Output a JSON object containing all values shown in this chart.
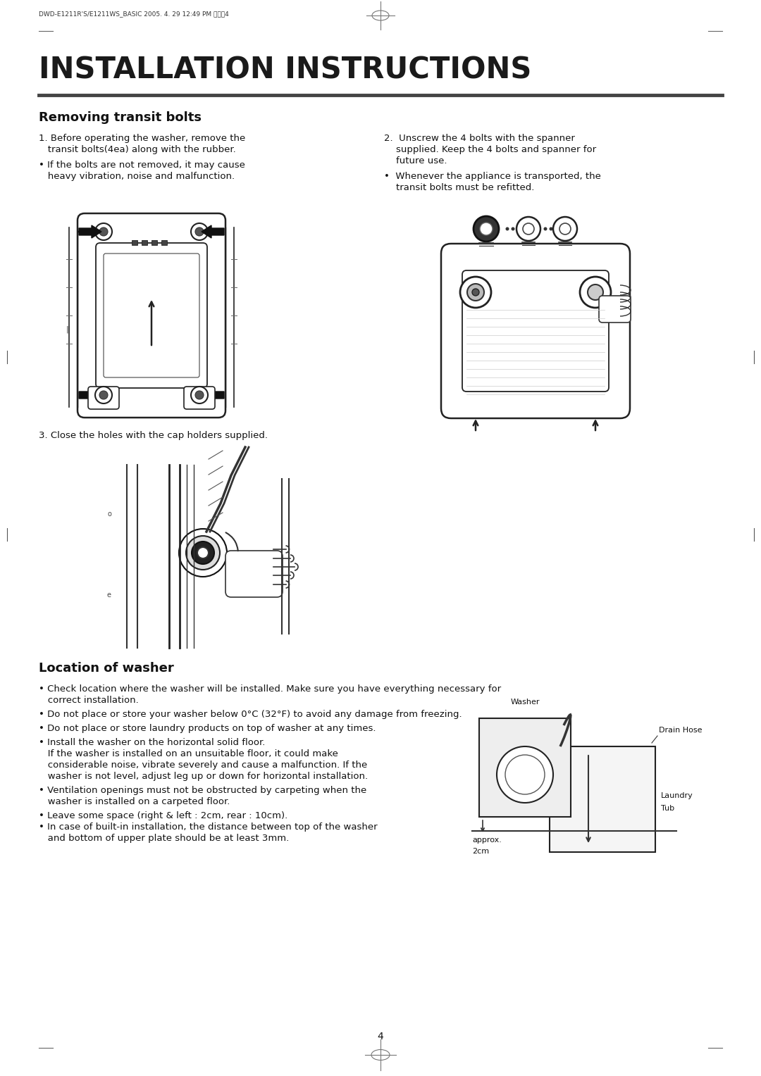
{
  "page_bg": "#ffffff",
  "header_text": "DWD-E1211R'S/E1211WS_BASIC 2005. 4. 29 12:49 PM 페이지4",
  "header_fontsize": 6.5,
  "main_title": "INSTALLATION INSTRUCTIONS",
  "main_title_fontsize": 30,
  "main_title_color": "#1a1a1a",
  "title_underline_color": "#444444",
  "section1_title": "Removing transit bolts",
  "section1_title_fontsize": 13,
  "section2_title": "Location of washer",
  "section2_title_fontsize": 13,
  "col1_line1": "1. Before operating the washer, remove the",
  "col1_line2": "   transit bolts(4ea) along with the rubber.",
  "col1_line3": "• If the bolts are not removed, it may cause",
  "col1_line4": "   heavy vibration, noise and malfunction.",
  "col2_line1": "2.  Unscrew the 4 bolts with the spanner",
  "col2_line2": "    supplied. Keep the 4 bolts and spanner for",
  "col2_line3": "    future use.",
  "col2_line4": "•  Whenever the appliance is transported, the",
  "col2_line5": "    transit bolts must be refitted.",
  "step3_text": "3. Close the holes with the cap holders supplied.",
  "loc_b1a": "• Check location where the washer will be installed. Make sure you have everything necessary for",
  "loc_b1b": "   correct installation.",
  "loc_b2": "• Do not place or store your washer below 0°C (32°F) to avoid any damage from freezing.",
  "loc_b3": "• Do not place or store laundry products on top of washer at any times.",
  "loc_b4a": "• Install the washer on the horizontal solid floor.",
  "loc_b4b": "   If the washer is installed on an unsuitable floor, it could make",
  "loc_b4c": "   considerable noise, vibrate severely and cause a malfunction. If the",
  "loc_b4d": "   washer is not level, adjust leg up or down for horizontal installation.",
  "loc_b5a": "• Ventilation openings must not be obstructed by carpeting when the",
  "loc_b5b": "   washer is installed on a carpeted floor.",
  "loc_b6": "• Leave some space (right & left : 2cm, rear : 10cm).",
  "loc_b7a": "• In case of built-in installation, the distance between top of the washer",
  "loc_b7b": "   and bottom of upper plate should be at least 3mm.",
  "page_number": "4",
  "text_fontsize": 9.5,
  "body_color": "#111111",
  "label_drain": "Drain Hose",
  "label_washer": "Washer",
  "label_laundry": "Laundry",
  "label_tub": "Tub",
  "label_approx": "approx.",
  "label_2cm": "2cm"
}
